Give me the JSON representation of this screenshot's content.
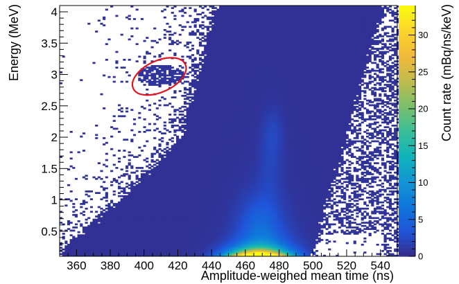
{
  "chart_data": {
    "type": "heatmap",
    "xlabel": "Amplitude-weighed mean time (ns)",
    "ylabel": "Energy (MeV)",
    "zlabel": "Count rate (mBq/ns/keV)",
    "xlim": [
      350,
      550
    ],
    "ylim": [
      0.1,
      4.1
    ],
    "zlim": [
      0,
      34
    ],
    "x_ticks": [
      360,
      380,
      400,
      420,
      440,
      460,
      480,
      500,
      520,
      540
    ],
    "y_ticks": [
      0.5,
      1,
      1.5,
      2,
      2.5,
      3,
      3.5,
      4
    ],
    "y_tick_labels": [
      "0.5",
      "1",
      "1.5",
      "2",
      "2.5",
      "3",
      "3.5",
      "4"
    ],
    "z_ticks": [
      0,
      5,
      10,
      15,
      20,
      25,
      30
    ],
    "colormap": [
      "#352a87",
      "#1f54d8",
      "#0f77db",
      "#1296d4",
      "#0fb3b8",
      "#3abf99",
      "#7bbf6a",
      "#c0bc4e",
      "#f1b93a",
      "#fbd52c",
      "#f9fb0e"
    ],
    "hotspot": {
      "x": 467,
      "y": 0.2,
      "value": 34
    },
    "annotation": {
      "shape": "ellipse",
      "color": "#e0141e",
      "x_center": 409,
      "y_center": 2.97,
      "x_radius": 17,
      "y_radius": 0.25,
      "rotation_deg": -25
    }
  }
}
